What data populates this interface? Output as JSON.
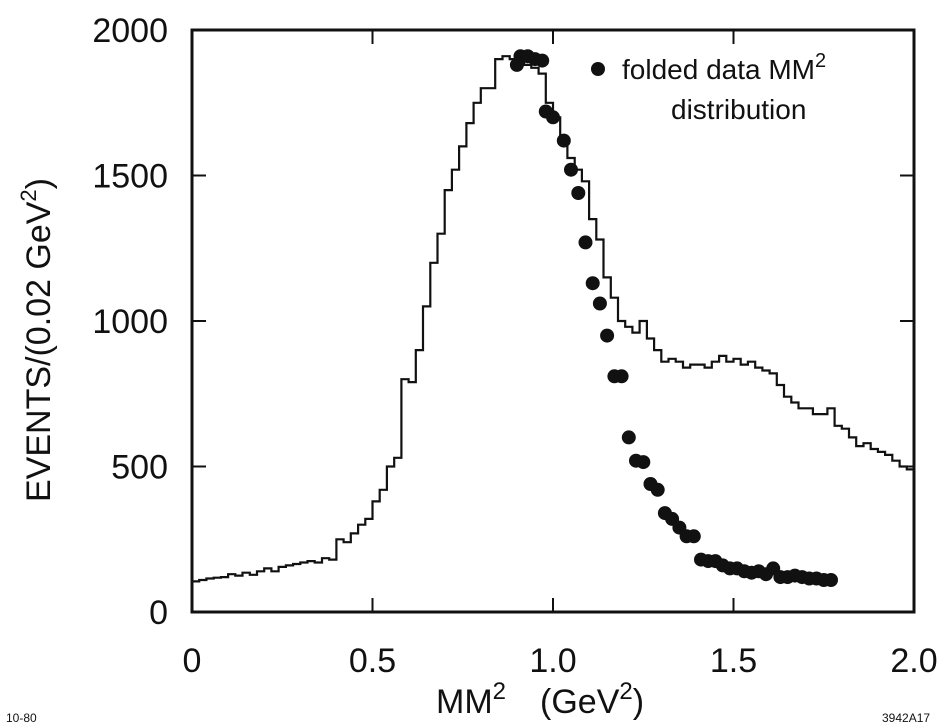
{
  "chart_data": {
    "type": "line",
    "title": "",
    "xlabel_main": "MM",
    "xlabel_sup": "2",
    "xlabel_unit_open": "(GeV",
    "xlabel_unit_sup": "2",
    "xlabel_unit_close": ")",
    "ylabel_main": "EVENTS/(0.02 GeV",
    "ylabel_sup": "2",
    "ylabel_close": ")",
    "xlim": [
      0,
      2.0
    ],
    "ylim": [
      0,
      2000
    ],
    "x_ticks": [
      {
        "value": 0,
        "label": "0"
      },
      {
        "value": 0.5,
        "label": "0.5"
      },
      {
        "value": 1.0,
        "label": "1.0"
      },
      {
        "value": 1.5,
        "label": "1.5"
      },
      {
        "value": 2.0,
        "label": "2.0"
      }
    ],
    "y_ticks": [
      {
        "value": 0,
        "label": "0"
      },
      {
        "value": 500,
        "label": "500"
      },
      {
        "value": 1000,
        "label": "1000"
      },
      {
        "value": 1500,
        "label": "1500"
      },
      {
        "value": 2000,
        "label": "2000"
      }
    ],
    "legend": {
      "placement": "top-right",
      "line1_main": "folded data MM",
      "line1_sup": "2",
      "line2": "distribution"
    },
    "series": [
      {
        "kind": "histogram",
        "bin_width": 0.02,
        "bin_start": 0.0,
        "values": [
          105,
          110,
          115,
          118,
          120,
          130,
          125,
          135,
          128,
          140,
          150,
          140,
          155,
          160,
          165,
          170,
          175,
          170,
          185,
          180,
          250,
          240,
          270,
          300,
          320,
          380,
          420,
          500,
          530,
          800,
          790,
          900,
          1050,
          1200,
          1300,
          1450,
          1520,
          1600,
          1680,
          1750,
          1800,
          1800,
          1900,
          1910,
          1900,
          1920,
          1880,
          1870,
          1850,
          1750,
          1700,
          1620,
          1560,
          1520,
          1480,
          1350,
          1280,
          1150,
          1080,
          1000,
          980,
          960,
          1000,
          940,
          900,
          860,
          870,
          860,
          840,
          850,
          850,
          840,
          860,
          880,
          860,
          870,
          850,
          860,
          840,
          830,
          820,
          780,
          740,
          720,
          700,
          700,
          680,
          680,
          700,
          640,
          630,
          600,
          570,
          580,
          560,
          550,
          540,
          520,
          500,
          490
        ]
      },
      {
        "kind": "points",
        "name": "folded data MM² distribution",
        "x": [
          0.9,
          0.91,
          0.93,
          0.95,
          0.97,
          0.98,
          1.0,
          1.03,
          1.05,
          1.07,
          1.09,
          1.11,
          1.13,
          1.15,
          1.17,
          1.19,
          1.21,
          1.23,
          1.25,
          1.27,
          1.29,
          1.31,
          1.33,
          1.35,
          1.37,
          1.39,
          1.41,
          1.43,
          1.45,
          1.47,
          1.49,
          1.51,
          1.53,
          1.55,
          1.57,
          1.59,
          1.61,
          1.63,
          1.65,
          1.67,
          1.69,
          1.71,
          1.73,
          1.75,
          1.77
        ],
        "y": [
          1880,
          1910,
          1910,
          1900,
          1895,
          1720,
          1700,
          1620,
          1520,
          1440,
          1270,
          1130,
          1060,
          950,
          810,
          810,
          600,
          520,
          515,
          440,
          420,
          340,
          320,
          290,
          260,
          260,
          180,
          175,
          175,
          160,
          150,
          150,
          140,
          135,
          140,
          130,
          150,
          120,
          120,
          125,
          120,
          115,
          115,
          110,
          110
        ]
      }
    ],
    "colors": {
      "ink": "#111111",
      "background": "#ffffff"
    }
  },
  "notes": {
    "bottom_left": "10-80",
    "bottom_right": "3942A17"
  }
}
